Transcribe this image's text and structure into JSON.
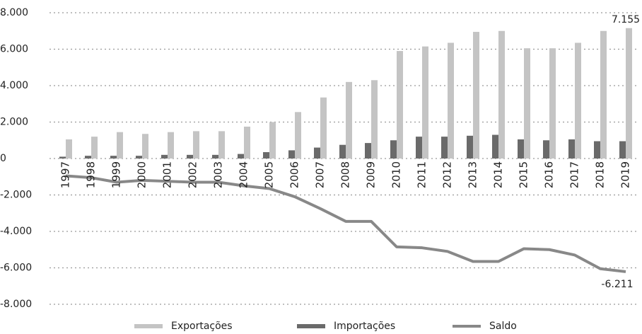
{
  "chart_data": {
    "type": "bar_line",
    "categories": [
      "1997",
      "1998",
      "1999",
      "2000",
      "2001",
      "2002",
      "2003",
      "2004",
      "2005",
      "2006",
      "2007",
      "2008",
      "2009",
      "2010",
      "2011",
      "2012",
      "2013",
      "2014",
      "2015",
      "2016",
      "2017",
      "2018",
      "2019"
    ],
    "series": [
      {
        "name": "Exportações",
        "type": "bar",
        "color": "#c4c4c4",
        "values": [
          1050,
          1200,
          1450,
          1350,
          1450,
          1500,
          1500,
          1750,
          2000,
          2550,
          3350,
          4200,
          4300,
          5900,
          6150,
          6350,
          6950,
          7000,
          6050,
          6050,
          6350,
          7000,
          7155
        ],
        "value_labels": [
          null,
          null,
          null,
          null,
          null,
          null,
          null,
          null,
          null,
          null,
          null,
          null,
          null,
          null,
          null,
          null,
          null,
          null,
          null,
          null,
          null,
          null,
          "7.155"
        ]
      },
      {
        "name": "Importações",
        "type": "bar",
        "color": "#6a6a6a",
        "values": [
          100,
          150,
          150,
          150,
          200,
          200,
          200,
          250,
          350,
          450,
          600,
          750,
          850,
          1000,
          1200,
          1200,
          1250,
          1300,
          1050,
          1000,
          1050,
          950,
          950
        ]
      },
      {
        "name": "Saldo",
        "type": "line",
        "color": "#888888",
        "values": [
          -950,
          -1050,
          -1300,
          -1200,
          -1250,
          -1300,
          -1300,
          -1500,
          -1650,
          -2100,
          -2750,
          -3450,
          -3450,
          -4850,
          -4900,
          -5100,
          -5650,
          -5650,
          -4950,
          -5000,
          -5300,
          -6050,
          -6211
        ],
        "value_labels": [
          null,
          null,
          null,
          null,
          null,
          null,
          null,
          null,
          null,
          null,
          null,
          null,
          null,
          null,
          null,
          null,
          null,
          null,
          null,
          null,
          null,
          null,
          "-6.211"
        ]
      }
    ],
    "ylim": [
      -8000,
      8000
    ],
    "yticks": [
      {
        "value": 8000,
        "label": "8.000"
      },
      {
        "value": 6000,
        "label": "6.000"
      },
      {
        "value": 4000,
        "label": "4.000"
      },
      {
        "value": 2000,
        "label": "2.000"
      },
      0,
      {
        "value": -2000,
        "label": "-2.000"
      },
      {
        "value": -4000,
        "label": "-4.000"
      },
      {
        "value": -6000,
        "label": "-6.000"
      },
      {
        "value": -8000,
        "label": "-8.000"
      }
    ],
    "grid": true,
    "legend": "bottom"
  }
}
